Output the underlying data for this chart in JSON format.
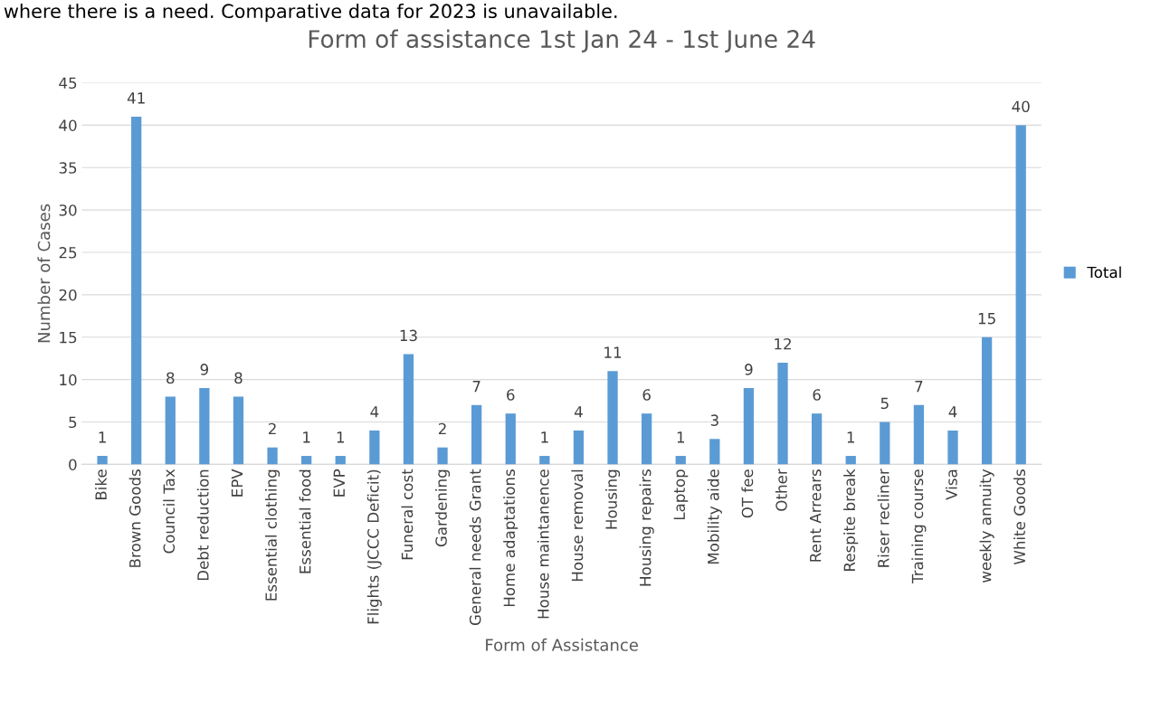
{
  "chart_data": {
    "type": "bar",
    "title": "Form of assistance 1st Jan 24 - 1st June 24",
    "xlabel": "Form of Assistance",
    "ylabel": "Number of Cases",
    "annotations": [
      "where there is a need. Comparative data for 2023 is unavailable."
    ],
    "categories": [
      "Bike",
      "Brown Goods",
      "Council Tax",
      "Debt reduction",
      "EPV",
      "Essential clothing",
      "Essential food",
      "EVP",
      "Flights (JCCC Deficit)",
      "Funeral cost",
      "Gardening",
      "General needs Grant",
      "Home adaptations",
      "House maintanence",
      "House removal",
      "Housing",
      "Housing repairs",
      "Laptop",
      "Mobility aide",
      "OT fee",
      "Other",
      "Rent Arrears",
      "Respite break",
      "Riser recliner",
      "Training course",
      "Visa",
      "weekly annuity",
      "White Goods"
    ],
    "series": [
      {
        "name": "Total",
        "color": "#5b9bd5",
        "values": [
          1,
          41,
          8,
          9,
          8,
          2,
          1,
          1,
          4,
          13,
          2,
          7,
          6,
          1,
          4,
          11,
          6,
          1,
          3,
          9,
          12,
          6,
          1,
          5,
          7,
          4,
          15,
          40
        ]
      }
    ],
    "ylim": [
      0,
      45
    ],
    "yticks": [
      0,
      5,
      10,
      15,
      20,
      25,
      30,
      35,
      40,
      45
    ],
    "grid": "y",
    "legend": "right",
    "data_labels": true
  }
}
